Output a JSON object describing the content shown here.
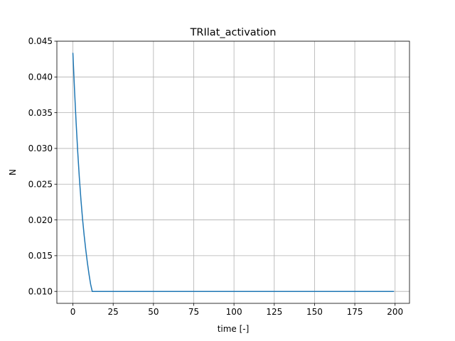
{
  "chart_data": {
    "type": "line",
    "title": "TRIlat_activation",
    "xlabel": "time [-]",
    "ylabel": "N",
    "xlim": [
      -9.95,
      208.95
    ],
    "ylim": [
      0.00833,
      0.045
    ],
    "xticks": [
      0,
      25,
      50,
      75,
      100,
      125,
      150,
      175,
      200
    ],
    "yticks": [
      0.01,
      0.015,
      0.02,
      0.025,
      0.03,
      0.035,
      0.04,
      0.045
    ],
    "ytick_labels": [
      "0.010",
      "0.015",
      "0.020",
      "0.025",
      "0.030",
      "0.035",
      "0.040",
      "0.045"
    ],
    "grid": true,
    "series": [
      {
        "color": "#1f77b4",
        "x": [
          0,
          1,
          2,
          3,
          4,
          5,
          6,
          7,
          8,
          9,
          10,
          11,
          12,
          199
        ],
        "y": [
          0.0433,
          0.0382,
          0.0336,
          0.0295,
          0.0259,
          0.0228,
          0.0201,
          0.0178,
          0.0158,
          0.014,
          0.0124,
          0.011,
          0.01,
          0.01
        ]
      }
    ]
  }
}
